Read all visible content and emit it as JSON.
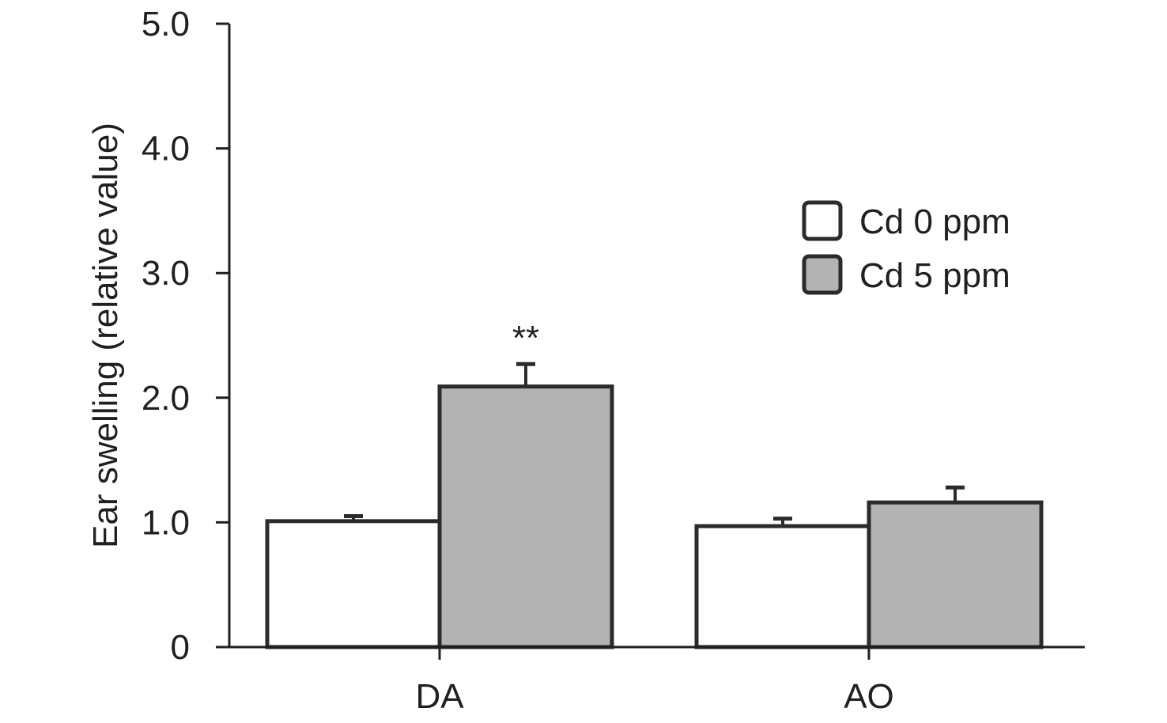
{
  "chart_data": {
    "type": "bar",
    "title": "",
    "xlabel": "",
    "ylabel": "Ear swelling (relative value)",
    "ylim": [
      0,
      5.0
    ],
    "yticks": [
      "0",
      "1.0",
      "2.0",
      "3.0",
      "4.0",
      "5.0"
    ],
    "ytick_values": [
      0,
      1,
      2,
      3,
      4,
      5
    ],
    "categories": [
      "DA",
      "AO"
    ],
    "series": [
      {
        "name": "Cd 0 ppm",
        "values": [
          1.01,
          0.97
        ],
        "errors": [
          0.04,
          0.06
        ],
        "color": "#ffffff"
      },
      {
        "name": "Cd 5 ppm",
        "values": [
          2.09,
          1.16
        ],
        "errors": [
          0.18,
          0.12
        ],
        "color": "#b3b3b3"
      }
    ],
    "annotations": [
      {
        "text": "**",
        "category": "DA",
        "series": "Cd 5 ppm"
      }
    ],
    "legend_position": "top-right",
    "grid": false
  },
  "colors": {
    "axis": "#231f20",
    "bar_outline": "#2b2b2b"
  }
}
